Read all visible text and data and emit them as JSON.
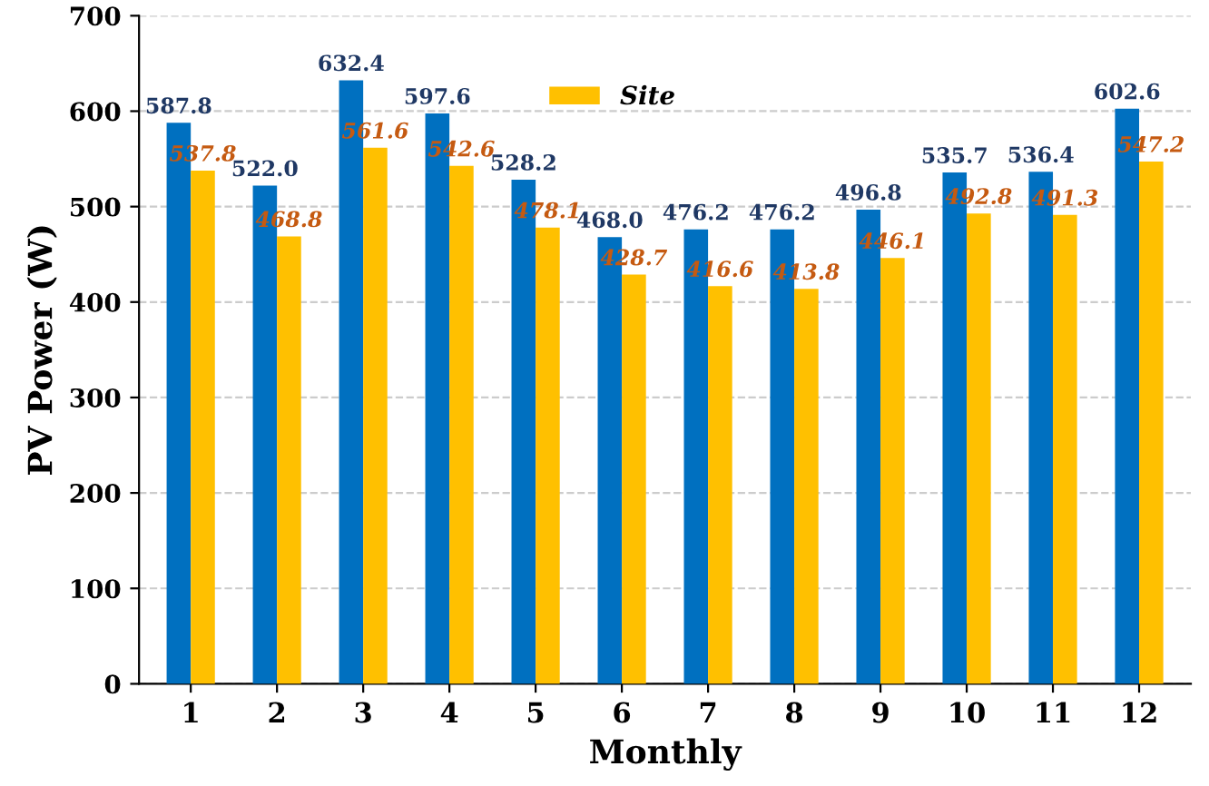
{
  "chart_data": {
    "type": "bar",
    "xlabel": "Monthly",
    "ylabel": "PV Power (W)",
    "categories": [
      "1",
      "2",
      "3",
      "4",
      "5",
      "6",
      "7",
      "8",
      "9",
      "10",
      "11",
      "12"
    ],
    "series": [
      {
        "color": "#0070c0",
        "values": [
          587.8,
          522.0,
          632.4,
          597.6,
          528.2,
          468.0,
          476.2,
          476.2,
          496.8,
          535.7,
          536.4,
          602.6
        ],
        "value_labels": [
          "587.8",
          "522.0",
          "632.4",
          "597.6",
          "528.2",
          "468.0",
          "476.2",
          "476.2",
          "496.8",
          "535.7",
          "536.4",
          "602.6"
        ]
      },
      {
        "name": "Site",
        "color": "#ffc000",
        "values": [
          537.8,
          468.8,
          561.6,
          542.6,
          478.1,
          428.7,
          416.6,
          413.8,
          446.1,
          492.8,
          491.3,
          547.2
        ],
        "value_labels": [
          "537.8",
          "468.8",
          "561.6",
          "542.6",
          "478.1",
          "428.7",
          "416.6",
          "413.8",
          "446.1",
          "492.8",
          "491.3",
          "547.2"
        ]
      }
    ],
    "ylim": [
      0,
      700
    ],
    "yticks": [
      0,
      100,
      200,
      300,
      400,
      500,
      600,
      700
    ],
    "grid": "y",
    "legend": "top"
  }
}
